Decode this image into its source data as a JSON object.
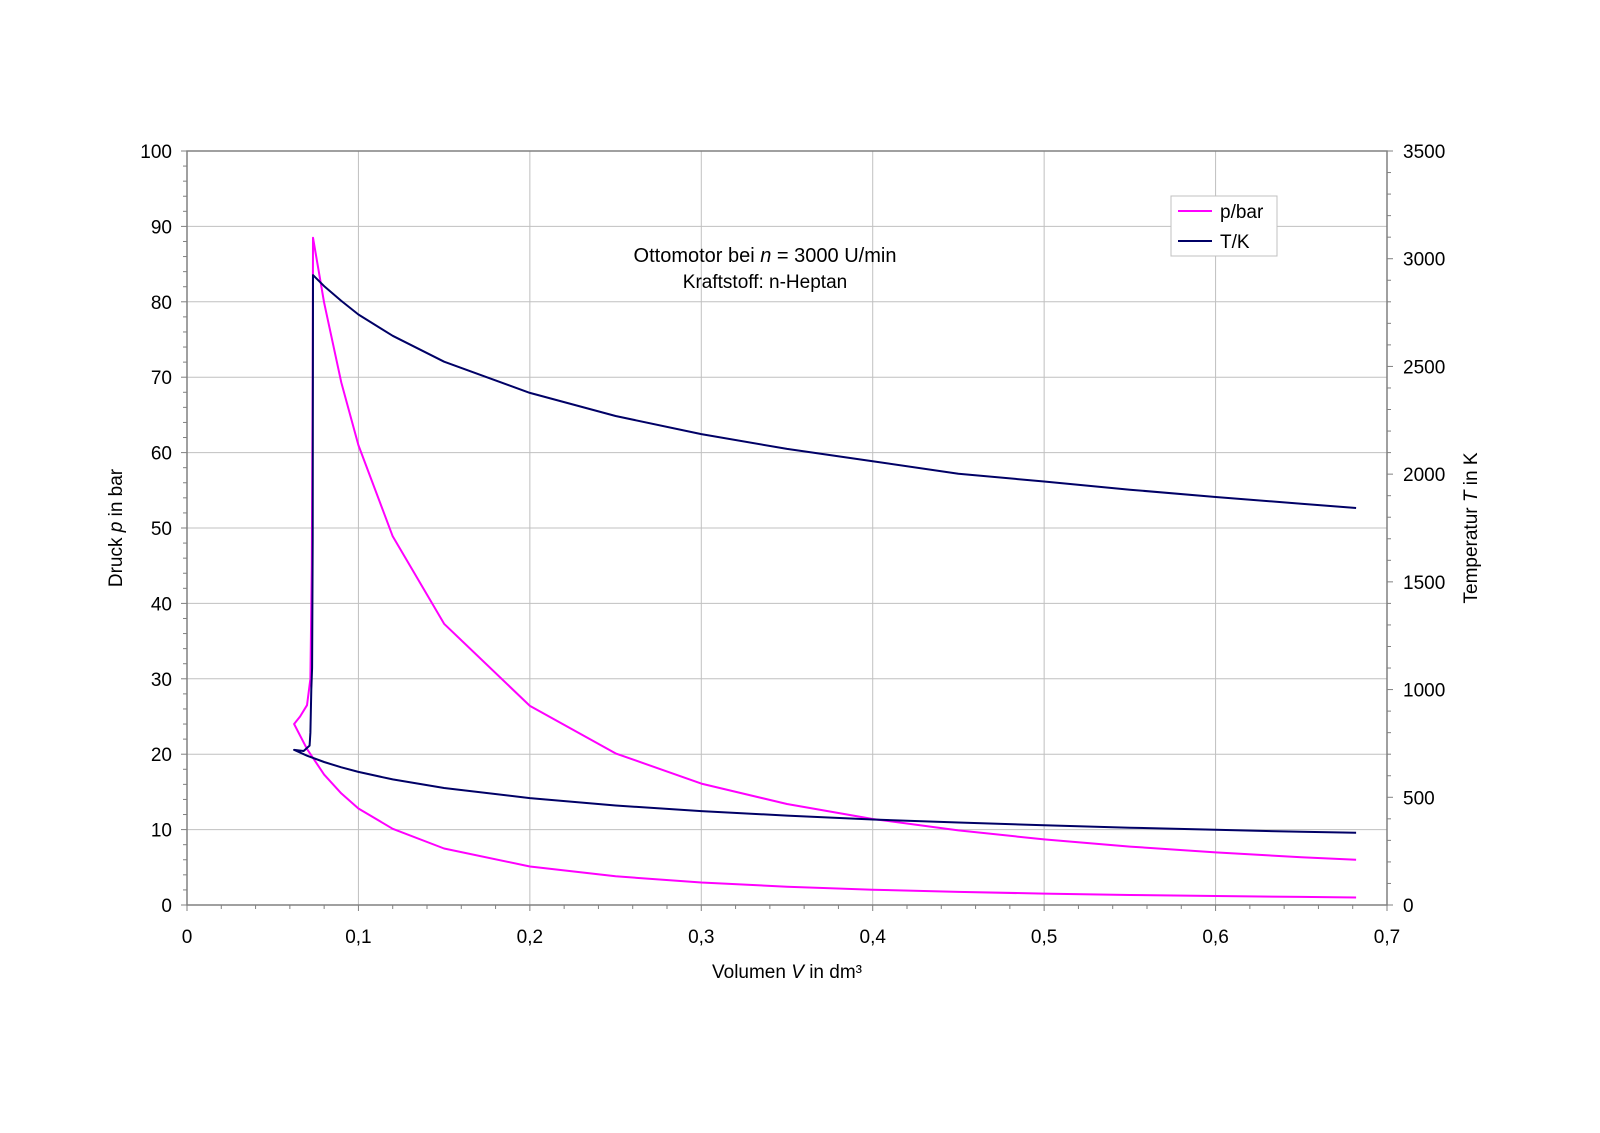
{
  "chart_data": {
    "type": "line",
    "title": "Ottomotor bei n = 3000 U/min",
    "title_parts": {
      "pre": "Ottomotor bei ",
      "var": "n",
      "post": " = 3000 U/min"
    },
    "subtitle": "Kraftstoff: n-Heptan",
    "xlabel": {
      "pre": "Volumen ",
      "var": "V",
      "post": " in dm³"
    },
    "ylabel": {
      "pre": "Druck ",
      "var": "p",
      "post": " in bar"
    },
    "y2label": {
      "pre": "Temperatur ",
      "var": "T",
      "post": " in K"
    },
    "xlim": [
      0,
      0.7
    ],
    "ylim": [
      0,
      100
    ],
    "y2lim": [
      0,
      3500
    ],
    "xticks": [
      "0",
      "0,1",
      "0,2",
      "0,3",
      "0,4",
      "0,5",
      "0,6",
      "0,7"
    ],
    "yticks": [
      "0",
      "10",
      "20",
      "30",
      "40",
      "50",
      "60",
      "70",
      "80",
      "90",
      "100"
    ],
    "y2ticks": [
      "0",
      "500",
      "1000",
      "1500",
      "2000",
      "2500",
      "3000",
      "3500"
    ],
    "grid": true,
    "legend_position": "top-right",
    "series": [
      {
        "name": "p/bar",
        "axis": "left",
        "color": "#ff00ff",
        "points": [
          [
            0.682,
            1.0
          ],
          [
            0.65,
            1.07
          ],
          [
            0.6,
            1.19
          ],
          [
            0.55,
            1.33
          ],
          [
            0.5,
            1.51
          ],
          [
            0.45,
            1.74
          ],
          [
            0.4,
            2.03
          ],
          [
            0.35,
            2.43
          ],
          [
            0.3,
            2.98
          ],
          [
            0.25,
            3.8
          ],
          [
            0.2,
            5.11
          ],
          [
            0.15,
            7.49
          ],
          [
            0.12,
            10.1
          ],
          [
            0.1,
            12.8
          ],
          [
            0.09,
            14.8
          ],
          [
            0.08,
            17.3
          ],
          [
            0.07,
            20.7
          ],
          [
            0.0625,
            24.0
          ],
          [
            0.066,
            25.0
          ],
          [
            0.07,
            26.5
          ],
          [
            0.072,
            30.0
          ],
          [
            0.0728,
            45.0
          ],
          [
            0.0733,
            70.0
          ],
          [
            0.0735,
            88.5
          ],
          [
            0.08,
            79.9
          ],
          [
            0.09,
            69.3
          ],
          [
            0.1,
            61.0
          ],
          [
            0.12,
            48.9
          ],
          [
            0.15,
            37.3
          ],
          [
            0.2,
            26.4
          ],
          [
            0.25,
            20.1
          ],
          [
            0.3,
            16.1
          ],
          [
            0.35,
            13.4
          ],
          [
            0.4,
            11.4
          ],
          [
            0.45,
            9.9
          ],
          [
            0.5,
            8.7
          ],
          [
            0.55,
            7.75
          ],
          [
            0.6,
            6.97
          ],
          [
            0.65,
            6.34
          ],
          [
            0.682,
            6.0
          ]
        ]
      },
      {
        "name": "T/K",
        "axis": "right",
        "color": "#000066",
        "points": [
          [
            0.682,
            335
          ],
          [
            0.65,
            340
          ],
          [
            0.6,
            349
          ],
          [
            0.55,
            359
          ],
          [
            0.5,
            370
          ],
          [
            0.45,
            383
          ],
          [
            0.4,
            397
          ],
          [
            0.35,
            415
          ],
          [
            0.3,
            436
          ],
          [
            0.25,
            462
          ],
          [
            0.2,
            496
          ],
          [
            0.15,
            543
          ],
          [
            0.12,
            583
          ],
          [
            0.1,
            618
          ],
          [
            0.09,
            639
          ],
          [
            0.08,
            664
          ],
          [
            0.07,
            693
          ],
          [
            0.0625,
            720
          ],
          [
            0.068,
            715
          ],
          [
            0.0715,
            740
          ],
          [
            0.072,
            800
          ],
          [
            0.0725,
            1000
          ],
          [
            0.073,
            1100
          ],
          [
            0.0733,
            1700
          ],
          [
            0.0735,
            2924
          ],
          [
            0.08,
            2873
          ],
          [
            0.09,
            2804
          ],
          [
            0.1,
            2741
          ],
          [
            0.12,
            2642
          ],
          [
            0.15,
            2522
          ],
          [
            0.2,
            2377
          ],
          [
            0.25,
            2270
          ],
          [
            0.3,
            2186
          ],
          [
            0.35,
            2117
          ],
          [
            0.4,
            2060
          ],
          [
            0.45,
            2002
          ],
          [
            0.5,
            1966
          ],
          [
            0.55,
            1928
          ],
          [
            0.6,
            1894
          ],
          [
            0.65,
            1863
          ],
          [
            0.682,
            1843
          ]
        ]
      }
    ]
  }
}
